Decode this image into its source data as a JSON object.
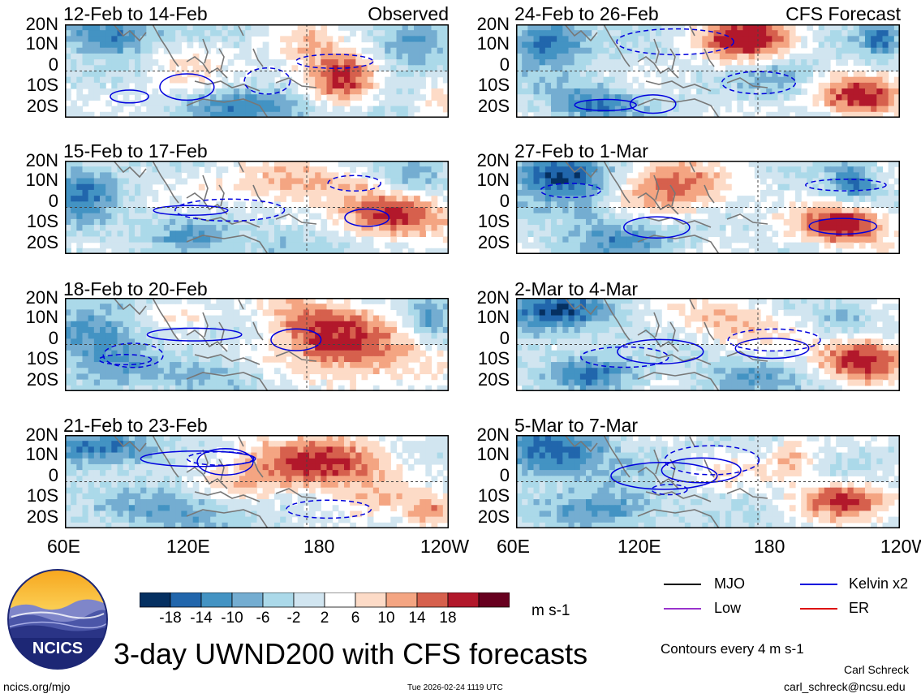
{
  "chart_data": {
    "type": "heatmap",
    "title": "3-day UWND200 with CFS forecasts",
    "variable": "UWND200",
    "units": "m s-1",
    "x_ticks": [
      "60E",
      "120E",
      "180",
      "120W"
    ],
    "y_ticks": [
      "20N",
      "10N",
      "0",
      "10S",
      "20S"
    ],
    "colorbar": {
      "labels": [
        "-18",
        "-14",
        "-10",
        "-6",
        "-2",
        "2",
        "6",
        "10",
        "14",
        "18"
      ],
      "colors": [
        "#053061",
        "#2166ac",
        "#4393c3",
        "#74add1",
        "#abd9e9",
        "#d1e5f0",
        "#ffffff",
        "#fddbc7",
        "#f4a582",
        "#d6604d",
        "#b2182b",
        "#67001f"
      ]
    },
    "panels": [
      {
        "period": "12-Feb to 14-Feb",
        "tag": "Observed",
        "column": "observed"
      },
      {
        "period": "15-Feb to 17-Feb",
        "tag": "",
        "column": "observed"
      },
      {
        "period": "18-Feb to 20-Feb",
        "tag": "",
        "column": "observed"
      },
      {
        "period": "21-Feb to 23-Feb",
        "tag": "",
        "column": "observed"
      },
      {
        "period": "24-Feb to 26-Feb",
        "tag": "CFS Forecast",
        "column": "forecast"
      },
      {
        "period": "27-Feb to 1-Mar",
        "tag": "",
        "column": "forecast"
      },
      {
        "period": "2-Mar to 4-Mar",
        "tag": "",
        "column": "forecast"
      },
      {
        "period": "5-Mar to 7-Mar",
        "tag": "",
        "column": "forecast"
      }
    ],
    "legend": [
      {
        "label": "MJO",
        "color": "#000000"
      },
      {
        "label": "Kelvin x2",
        "color": "#0000dd"
      },
      {
        "label": "Low",
        "color": "#9933cc"
      },
      {
        "label": "ER",
        "color": "#dd0000"
      }
    ],
    "contour_note": "Contours every 4 m s-1"
  },
  "logo": {
    "text": "NCICS"
  },
  "footer": {
    "url": "ncics.org/mjo",
    "timestamp": "Tue 2026-02-24 1119 UTC",
    "author": "Carl Schreck",
    "email": "carl_schreck@ncsu.edu"
  }
}
